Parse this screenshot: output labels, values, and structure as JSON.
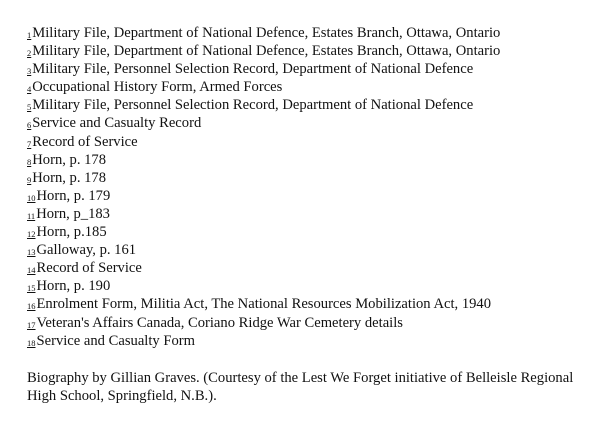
{
  "footnotes": [
    {
      "num": "1",
      "text": "Military File, Department of National Defence, Estates Branch, Ottawa, Ontario"
    },
    {
      "num": "2",
      "text": "Military File, Department of National Defence, Estates Branch, Ottawa, Ontario"
    },
    {
      "num": "3",
      "text": "Military File, Personnel Selection Record, Department of National Defence"
    },
    {
      "num": "4",
      "text": "Occupational History Form, Armed Forces"
    },
    {
      "num": "5",
      "text": "Military File, Personnel Selection Record, Department of National Defence"
    },
    {
      "num": "6",
      "text": "Service and Casualty Record"
    },
    {
      "num": "7",
      "text": "Record of Service"
    },
    {
      "num": "8",
      "text": "Horn, p. 178"
    },
    {
      "num": "9",
      "text": "Horn, p. 178"
    },
    {
      "num": "10",
      "text": "Horn, p. 179"
    },
    {
      "num": "11",
      "text": "Horn, p_183"
    },
    {
      "num": "12",
      "text": "Horn, p.185"
    },
    {
      "num": "13",
      "text": "Galloway, p. 161"
    },
    {
      "num": "14",
      "text": "Record of Service"
    },
    {
      "num": "15",
      "text": "Horn, p. 190"
    },
    {
      "num": "16",
      "text": "Enrolment Form, Militia Act, The National Resources Mobilization Act, 1940"
    },
    {
      "num": "17",
      "text": "Veteran's Affairs Canada, Coriano Ridge War Cemetery details"
    },
    {
      "num": "18",
      "text": "Service and Casualty Form"
    }
  ],
  "biography": "Biography by Gillian Graves. (Courtesy of the Lest We Forget initiative of Belleisle Regional High School, Springfield, N.B.)."
}
